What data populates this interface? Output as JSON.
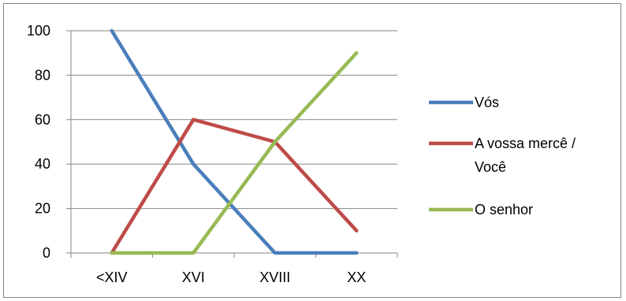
{
  "chart_data": {
    "type": "line",
    "categories": [
      "<XIV",
      "XVI",
      "XVIII",
      "XX"
    ],
    "series": [
      {
        "name": "Vós",
        "values": [
          100,
          40,
          0,
          0
        ],
        "color": "#4a7ebb"
      },
      {
        "name": "A vossa mercê / Você",
        "name_lines": [
          "A vossa mercê /",
          "Você"
        ],
        "values": [
          0,
          60,
          50,
          10
        ],
        "color": "#be4b48"
      },
      {
        "name": "O senhor",
        "values": [
          0,
          0,
          50,
          90
        ],
        "color": "#98b954"
      }
    ],
    "y_ticks": [
      0,
      20,
      40,
      60,
      80,
      100
    ],
    "ylim": [
      0,
      100
    ],
    "grid": true,
    "legend_position": "right",
    "title": "",
    "xlabel": "",
    "ylabel": ""
  }
}
